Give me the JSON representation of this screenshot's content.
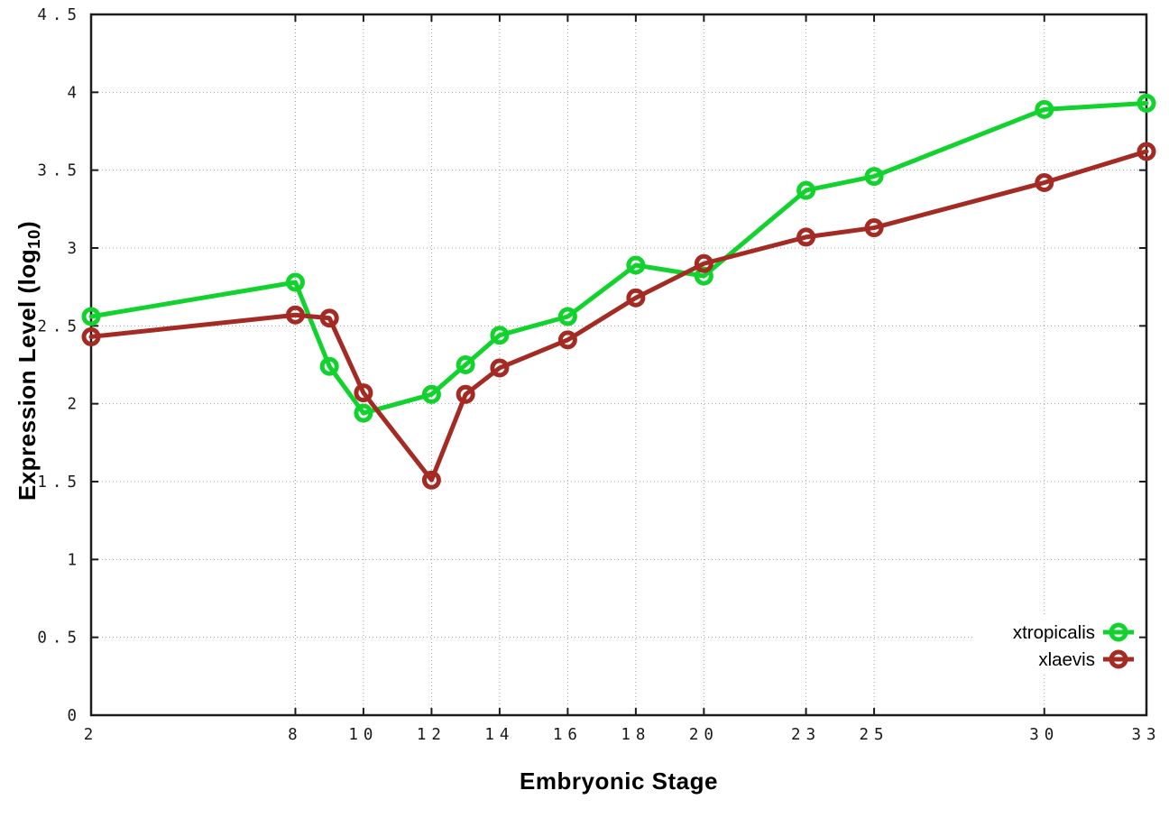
{
  "figure": {
    "background": "#ffffff",
    "border_color": "#1c1c1c",
    "grid_color": "#a0a0a0",
    "tick_label_color": "#1a1a1a"
  },
  "chart_data": {
    "type": "line",
    "title": "",
    "xlabel": "Embryonic Stage",
    "ylabel": {
      "prefix": "Expression Level (log",
      "subscript": "10",
      "suffix": ")"
    },
    "xlim": [
      2,
      33
    ],
    "ylim": [
      0,
      4.5
    ],
    "xticks": [
      2,
      8,
      10,
      12,
      14,
      16,
      18,
      20,
      23,
      25,
      30,
      33
    ],
    "yticks": [
      0,
      0.5,
      1,
      1.5,
      2,
      2.5,
      3,
      3.5,
      4,
      4.5
    ],
    "grid": true,
    "legend_position": "bottom-right",
    "x": [
      2,
      8,
      9,
      10,
      12,
      13,
      14,
      16,
      18,
      20,
      23,
      25,
      30,
      33
    ],
    "series": [
      {
        "name": "xtropicalis",
        "color": "#12d22e",
        "marker": "open-circle",
        "values": [
          2.56,
          2.78,
          2.24,
          1.94,
          2.06,
          2.25,
          2.44,
          2.56,
          2.89,
          2.82,
          3.37,
          3.46,
          3.89,
          3.93
        ]
      },
      {
        "name": "xlaevis",
        "color": "#a42b23",
        "marker": "open-circle",
        "values": [
          2.43,
          2.57,
          2.55,
          2.07,
          1.51,
          2.06,
          2.23,
          2.41,
          2.68,
          2.9,
          3.07,
          3.13,
          3.42,
          3.62
        ]
      }
    ]
  }
}
